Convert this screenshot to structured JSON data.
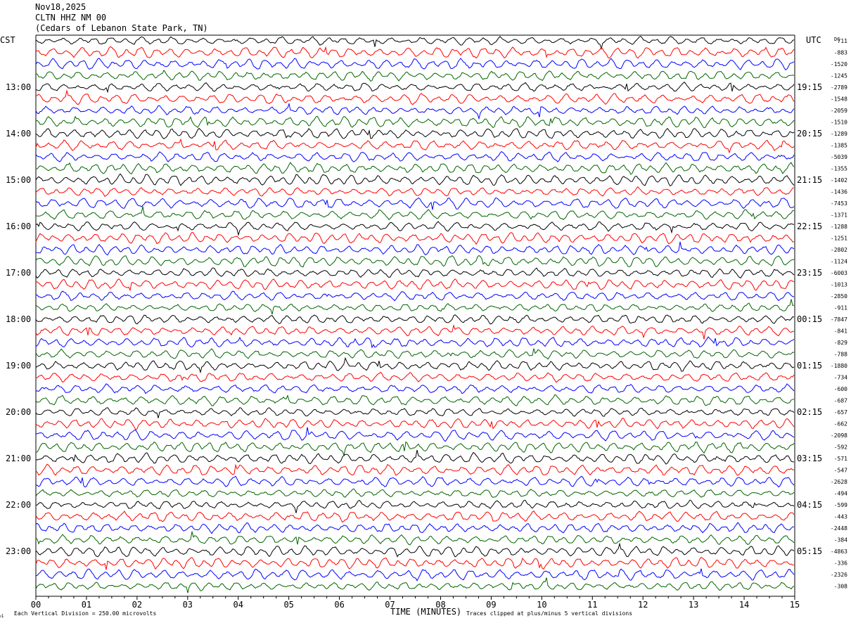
{
  "header": {
    "date": "Nov18,2025",
    "station": "CLTN HHZ NM 00",
    "location": "(Cedars of Lebanon State Park, TN)"
  },
  "labels": {
    "left_tz": "CST",
    "right_tz": "UTC",
    "dc": "DC",
    "x_title": "TIME (MINUTES)",
    "scale_note": "Each Vertical Division =  250.00 microvolts",
    "clip_note": "Traces clipped at plus/minus 5 vertical divisions",
    "corner_mark": "ᴊ1"
  },
  "chart_data": {
    "type": "line",
    "title": "CLTN HHZ NM 00",
    "xlabel": "TIME (MINUTES)",
    "ylabel": "",
    "xlim": [
      0,
      15
    ],
    "x_ticks": [
      "00",
      "01",
      "02",
      "03",
      "04",
      "05",
      "06",
      "07",
      "08",
      "09",
      "10",
      "11",
      "12",
      "13",
      "14",
      "15"
    ],
    "trace_count": 48,
    "trace_colors": [
      "#000000",
      "#ff0000",
      "#0000ff",
      "#006400"
    ],
    "left_time_labels": [
      {
        "label": "13:00",
        "row": 4
      },
      {
        "label": "14:00",
        "row": 8
      },
      {
        "label": "15:00",
        "row": 12
      },
      {
        "label": "16:00",
        "row": 16
      },
      {
        "label": "17:00",
        "row": 20
      },
      {
        "label": "18:00",
        "row": 24
      },
      {
        "label": "19:00",
        "row": 28
      },
      {
        "label": "20:00",
        "row": 32
      },
      {
        "label": "21:00",
        "row": 36
      },
      {
        "label": "22:00",
        "row": 40
      },
      {
        "label": "23:00",
        "row": 44
      }
    ],
    "right_time_labels": [
      {
        "label": "19:15",
        "row": 4
      },
      {
        "label": "20:15",
        "row": 8
      },
      {
        "label": "21:15",
        "row": 12
      },
      {
        "label": "22:15",
        "row": 16
      },
      {
        "label": "23:15",
        "row": 20
      },
      {
        "label": "00:15",
        "row": 24
      },
      {
        "label": "01:15",
        "row": 28
      },
      {
        "label": "02:15",
        "row": 32
      },
      {
        "label": "03:15",
        "row": 36
      },
      {
        "label": "04:15",
        "row": 40
      },
      {
        "label": "05:15",
        "row": 44
      }
    ],
    "dc_offsets": [
      "711",
      "-883",
      "-1520",
      "-1245",
      "-2789",
      "-1548",
      "-2059",
      "-1510",
      "-1289",
      "-1385",
      "-5039",
      "-1355",
      "-1402",
      "-1436",
      "-7453",
      "-1371",
      "-1288",
      "-1251",
      "-2802",
      "-1124",
      "-6003",
      "-1013",
      "-2850",
      "-911",
      "-7847",
      "-841",
      "-829",
      "-788",
      "-1880",
      "-734",
      "-600",
      "-687",
      "-657",
      "-662",
      "-2098",
      "-592",
      "-571",
      "-547",
      "-2628",
      "-494",
      "-599",
      "-443",
      "-2448",
      "-384",
      "-4863",
      "-336",
      "-2326",
      "-308"
    ],
    "scale_microvolts_per_division": 250.0,
    "clip_divisions": 5
  }
}
